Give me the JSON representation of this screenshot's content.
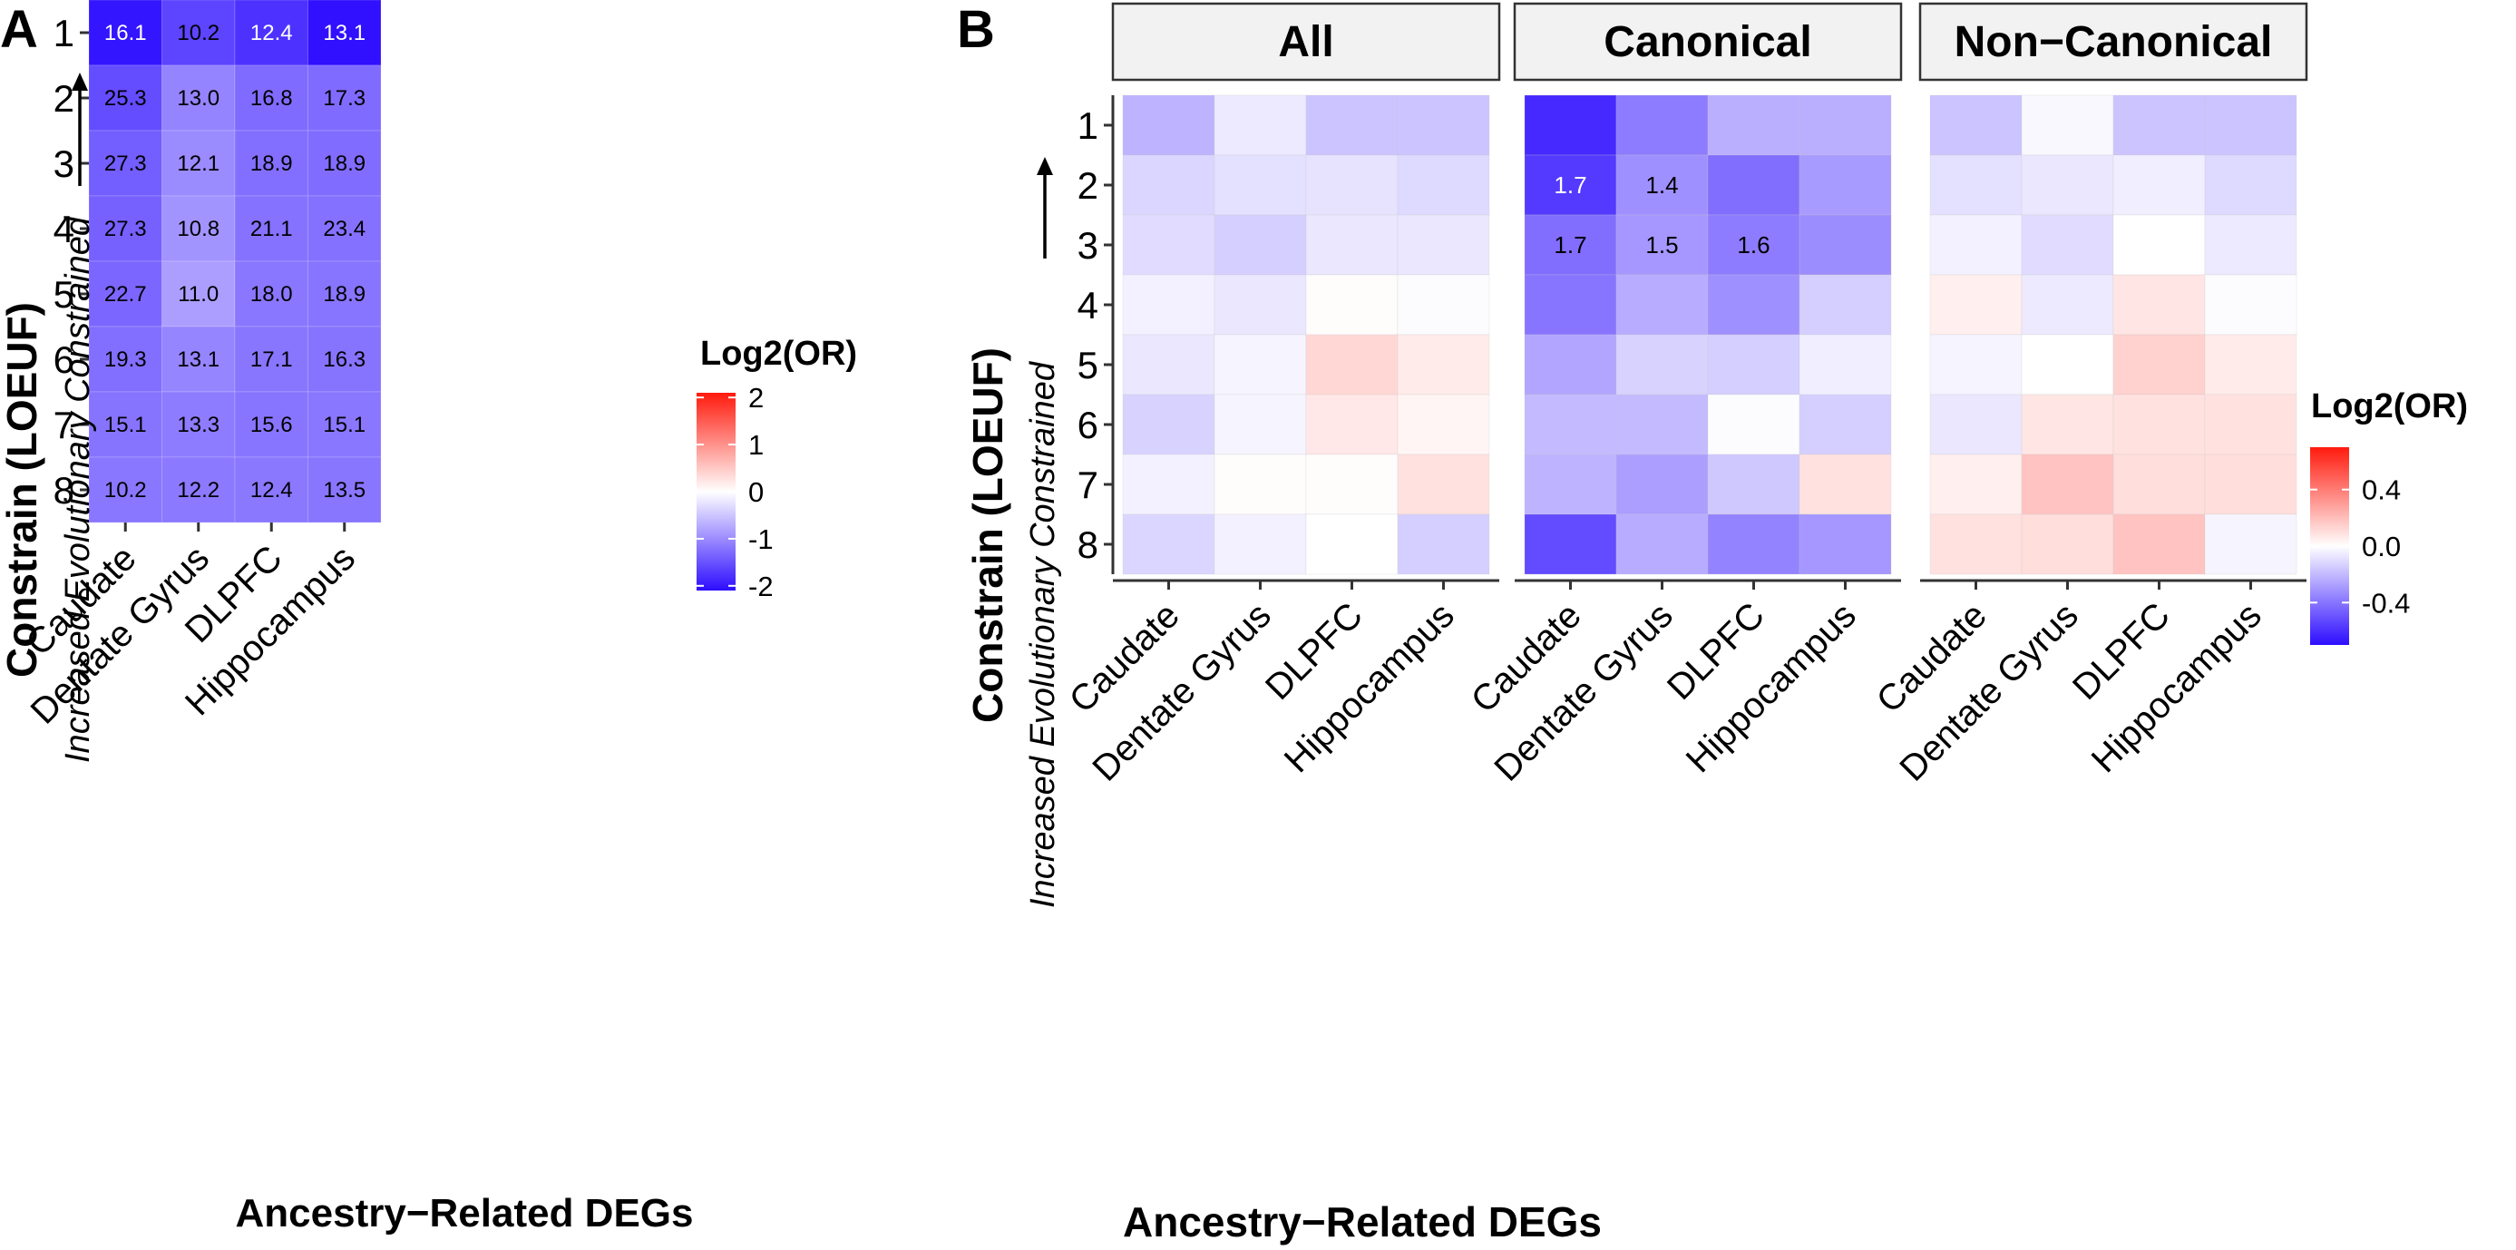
{
  "chart_data": [
    {
      "panel": "A",
      "type": "heatmap",
      "xlabel": "Ancestry−Related DEGs",
      "ylabel": "Constrain (LOEUF)",
      "ylabel_sub": "Increased Evolutionary Constrained",
      "x_categories": [
        "Caudate",
        "Dentate Gyrus",
        "DLPFC",
        "Hippocampus"
      ],
      "y_categories": [
        "1",
        "2",
        "3",
        "4",
        "5",
        "6",
        "7",
        "8"
      ],
      "legend": {
        "title": "Log2(OR)",
        "ticks": [
          "2",
          "1",
          "0",
          "-1",
          "-2"
        ],
        "tick_values": [
          2,
          1,
          0,
          -1,
          -2
        ],
        "range": [
          -2.1,
          2.1
        ],
        "position": "right"
      },
      "colors": {
        "low": "#2d0dff",
        "mid": "#ffffff",
        "high": "#ff1a0d"
      },
      "values": [
        [
          -2.03,
          -1.62,
          -1.78,
          -2.07
        ],
        [
          -1.55,
          -1.07,
          -1.28,
          -1.28
        ],
        [
          -1.4,
          -1.01,
          -1.25,
          -1.27
        ],
        [
          -1.37,
          -0.93,
          -1.22,
          -1.23
        ],
        [
          -1.32,
          -0.84,
          -1.18,
          -1.2
        ],
        [
          -1.25,
          -1.06,
          -1.19,
          -1.21
        ],
        [
          -1.21,
          -1.14,
          -1.2,
          -1.18
        ],
        [
          -1.18,
          -1.16,
          -1.17,
          -1.19
        ]
      ],
      "labels": [
        [
          "16.1",
          "10.2",
          "12.4",
          "13.1"
        ],
        [
          "25.3",
          "13.0",
          "16.8",
          "17.3"
        ],
        [
          "27.3",
          "12.1",
          "18.9",
          "18.9"
        ],
        [
          "27.3",
          "10.8",
          "21.1",
          "23.4"
        ],
        [
          "22.7",
          "11.0",
          "18.0",
          "18.9"
        ],
        [
          "19.3",
          "13.1",
          "17.1",
          "16.3"
        ],
        [
          "15.1",
          "13.3",
          "15.6",
          "15.1"
        ],
        [
          "10.2",
          "12.2",
          "12.4",
          "13.5"
        ]
      ]
    },
    {
      "panel": "B",
      "type": "heatmap",
      "xlabel": "Ancestry−Related DEGs",
      "ylabel": "Constrain (LOEUF)",
      "ylabel_sub": "Increased Evolutionary Constrained",
      "x_categories": [
        "Caudate",
        "Dentate Gyrus",
        "DLPFC",
        "Hippocampus"
      ],
      "y_categories": [
        "1",
        "2",
        "3",
        "4",
        "5",
        "6",
        "7",
        "8"
      ],
      "legend": {
        "title": "Log2(OR)",
        "ticks": [
          "0.4",
          "0.0",
          "-0.4"
        ],
        "tick_values": [
          0.4,
          0,
          -0.4
        ],
        "range": [
          -0.7,
          0.7
        ],
        "position": "right"
      },
      "colors": {
        "low": "#2d0dff",
        "mid": "#ffffff",
        "high": "#ff1a0d"
      },
      "facets": [
        {
          "name": "All",
          "values": [
            [
              -0.22,
              -0.06,
              -0.17,
              -0.17
            ],
            [
              -0.12,
              -0.09,
              -0.08,
              -0.11
            ],
            [
              -0.1,
              -0.14,
              -0.07,
              -0.07
            ],
            [
              -0.04,
              -0.07,
              0.01,
              -0.01
            ],
            [
              -0.07,
              -0.03,
              0.12,
              0.06
            ],
            [
              -0.13,
              -0.03,
              0.07,
              0.03
            ],
            [
              -0.04,
              0.01,
              0.01,
              0.09
            ],
            [
              -0.12,
              -0.04,
              0.0,
              -0.14
            ]
          ],
          "labels": [
            [
              "",
              "",
              "",
              ""
            ],
            [
              "",
              "",
              "",
              ""
            ],
            [
              "",
              "",
              "",
              ""
            ],
            [
              "",
              "",
              "",
              ""
            ],
            [
              "",
              "",
              "",
              ""
            ],
            [
              "",
              "",
              "",
              ""
            ],
            [
              "",
              "",
              "",
              ""
            ],
            [
              "",
              "",
              "",
              ""
            ]
          ]
        },
        {
          "name": "Canonical",
          "values": [
            [
              -0.62,
              -0.38,
              -0.23,
              -0.23
            ],
            [
              -0.57,
              -0.32,
              -0.42,
              -0.29
            ],
            [
              -0.42,
              -0.3,
              -0.38,
              -0.33
            ],
            [
              -0.4,
              -0.24,
              -0.32,
              -0.14
            ],
            [
              -0.26,
              -0.13,
              -0.14,
              -0.05
            ],
            [
              -0.2,
              -0.2,
              -0.01,
              -0.14
            ],
            [
              -0.22,
              -0.28,
              -0.16,
              0.09
            ],
            [
              -0.52,
              -0.24,
              -0.36,
              -0.3
            ]
          ],
          "labels": [
            [
              "",
              "",
              "",
              ""
            ],
            [
              "1.7",
              "1.4",
              "",
              ""
            ],
            [
              "1.7",
              "1.5",
              "1.6",
              ""
            ],
            [
              "",
              "",
              "",
              ""
            ],
            [
              "",
              "",
              "",
              ""
            ],
            [
              "",
              "",
              "",
              ""
            ],
            [
              "",
              "",
              "",
              ""
            ],
            [
              "",
              "",
              "",
              ""
            ]
          ]
        },
        {
          "name": "Non−Canonical",
          "values": [
            [
              -0.17,
              -0.02,
              -0.17,
              -0.17
            ],
            [
              -0.09,
              -0.07,
              -0.05,
              -0.11
            ],
            [
              -0.04,
              -0.1,
              0.0,
              -0.06
            ],
            [
              0.05,
              -0.06,
              0.08,
              -0.01
            ],
            [
              -0.03,
              0.0,
              0.14,
              0.06
            ],
            [
              -0.07,
              0.08,
              0.09,
              0.09
            ],
            [
              0.05,
              0.18,
              0.1,
              0.1
            ],
            [
              0.09,
              0.1,
              0.18,
              -0.03
            ]
          ],
          "labels": [
            [
              "",
              "",
              "",
              ""
            ],
            [
              "",
              "",
              "",
              ""
            ],
            [
              "",
              "",
              "",
              ""
            ],
            [
              "",
              "",
              "",
              ""
            ],
            [
              "",
              "",
              "",
              ""
            ],
            [
              "",
              "",
              "",
              ""
            ],
            [
              "",
              "",
              "",
              ""
            ],
            [
              "",
              "",
              "",
              ""
            ]
          ]
        }
      ]
    }
  ],
  "panel_tags": [
    "A",
    "B"
  ]
}
